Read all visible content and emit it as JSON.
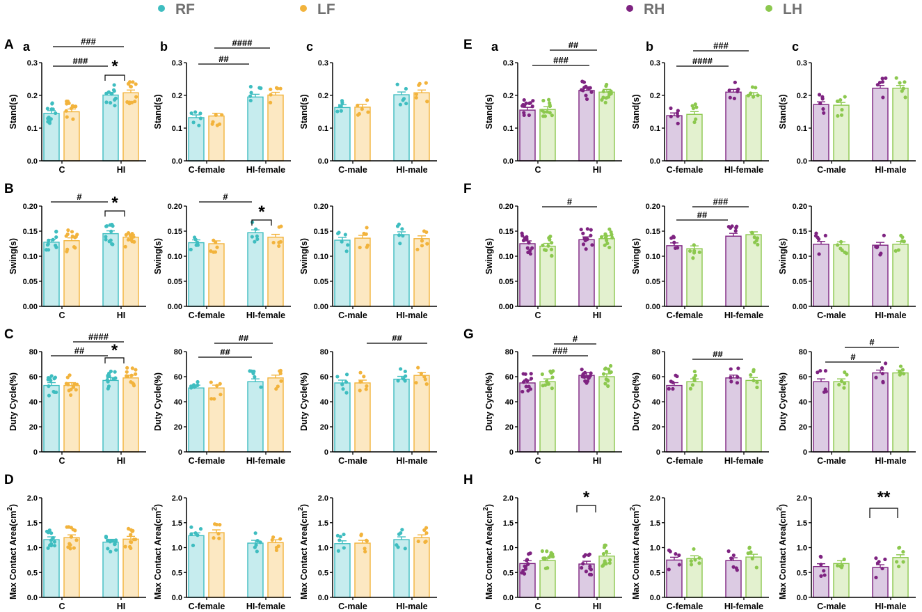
{
  "legend": [
    {
      "name": "RF",
      "color": "#3ebdc0",
      "fill": "#c6ecee"
    },
    {
      "name": "LF",
      "color": "#f2b33c",
      "fill": "#fce8c2"
    },
    {
      "name": "RH",
      "color": "#7e2381",
      "fill": "#dccbe3"
    },
    {
      "name": "LH",
      "color": "#8cc84e",
      "fill": "#e3f1cf"
    }
  ],
  "letters": [
    "A",
    "B",
    "C",
    "D",
    "E",
    "F",
    "G",
    "H"
  ],
  "sublabels": [
    "a",
    "b",
    "c"
  ],
  "chart_data": [
    {
      "type": "bar",
      "title": "A a",
      "ylabel": "Stand(s)",
      "ylim": [
        0,
        0.3
      ],
      "ticks": [
        "0.0",
        "0.1",
        "0.2",
        "0.3"
      ],
      "categories": [
        "C",
        "HI"
      ],
      "series": [
        {
          "name": "RF",
          "values": [
            0.145,
            0.201
          ]
        },
        {
          "name": "LF",
          "values": [
            0.15,
            0.208
          ]
        }
      ],
      "annotations": [
        {
          "text": "###",
          "from": "C",
          "to": "HI"
        },
        {
          "text": "###",
          "from": "C",
          "to": "HI"
        },
        {
          "text": "*",
          "from": "HI",
          "to": "HI"
        }
      ]
    },
    {
      "type": "bar",
      "title": "A b",
      "ylabel": "Stand(s)",
      "ylim": [
        0,
        0.3
      ],
      "ticks": [
        "0.0",
        "0.1",
        "0.2",
        "0.3"
      ],
      "categories": [
        "C-female",
        "HI-female"
      ],
      "series": [
        {
          "name": "RF",
          "values": [
            0.132,
            0.195
          ]
        },
        {
          "name": "LF",
          "values": [
            0.137,
            0.201
          ]
        }
      ],
      "annotations": [
        {
          "text": "##",
          "from": "C-female",
          "to": "HI-female"
        },
        {
          "text": "####",
          "from": "C-female",
          "to": "HI-female"
        }
      ]
    },
    {
      "type": "bar",
      "title": "A c",
      "ylabel": "Stand(s)",
      "ylim": [
        0,
        0.3
      ],
      "ticks": [
        "0.0",
        "0.1",
        "0.2",
        "0.3"
      ],
      "categories": [
        "C-male",
        "HI-male"
      ],
      "series": [
        {
          "name": "RF",
          "values": [
            0.163,
            0.202
          ]
        },
        {
          "name": "LF",
          "values": [
            0.164,
            0.208
          ]
        }
      ],
      "annotations": []
    },
    {
      "type": "bar",
      "title": "B",
      "ylabel": "Swing(s)",
      "ylim": [
        0,
        0.2
      ],
      "ticks": [
        "0.00",
        "0.05",
        "0.10",
        "0.15",
        "0.20"
      ],
      "categories": [
        "C",
        "HI"
      ],
      "series": [
        {
          "name": "RF",
          "values": [
            0.128,
            0.145
          ]
        },
        {
          "name": "LF",
          "values": [
            0.131,
            0.138
          ]
        }
      ],
      "annotations": [
        {
          "text": "#",
          "from": "C",
          "to": "HI"
        },
        {
          "text": "*",
          "from": "HI",
          "to": "HI"
        }
      ]
    },
    {
      "type": "bar",
      "title": "B b",
      "ylabel": "Swing(s)",
      "ylim": [
        0,
        0.2
      ],
      "ticks": [
        "0.00",
        "0.05",
        "0.10",
        "0.15",
        "0.20"
      ],
      "categories": [
        "C-female",
        "HI-female"
      ],
      "series": [
        {
          "name": "RF",
          "values": [
            0.127,
            0.147
          ]
        },
        {
          "name": "LF",
          "values": [
            0.125,
            0.138
          ]
        }
      ],
      "annotations": [
        {
          "text": "#",
          "from": "C-female",
          "to": "HI-female"
        },
        {
          "text": "*",
          "from": "HI-female",
          "to": "HI-female"
        }
      ]
    },
    {
      "type": "bar",
      "title": "B c",
      "ylabel": "Swing(s)",
      "ylim": [
        0,
        0.2
      ],
      "ticks": [
        "0.00",
        "0.05",
        "0.10",
        "0.15",
        "0.20"
      ],
      "categories": [
        "C-male",
        "HI-male"
      ],
      "series": [
        {
          "name": "RF",
          "values": [
            0.132,
            0.143
          ]
        },
        {
          "name": "LF",
          "values": [
            0.136,
            0.135
          ]
        }
      ],
      "annotations": []
    },
    {
      "type": "bar",
      "title": "C",
      "ylabel": "Duty Cycle(%)",
      "ylim": [
        0,
        80
      ],
      "ticks": [
        "0",
        "20",
        "40",
        "60",
        "80"
      ],
      "categories": [
        "C",
        "HI"
      ],
      "series": [
        {
          "name": "RF",
          "values": [
            53,
            57
          ]
        },
        {
          "name": "LF",
          "values": [
            53,
            59
          ]
        }
      ],
      "annotations": [
        {
          "text": "##",
          "from": "C",
          "to": "HI"
        },
        {
          "text": "####",
          "from": "C",
          "to": "HI"
        },
        {
          "text": "*",
          "from": "HI",
          "to": "HI"
        }
      ]
    },
    {
      "type": "bar",
      "title": "C b",
      "ylabel": "Duty Cycle(%)",
      "ylim": [
        0,
        80
      ],
      "ticks": [
        "0",
        "20",
        "40",
        "60",
        "80"
      ],
      "categories": [
        "C-female",
        "HI-female"
      ],
      "series": [
        {
          "name": "RF",
          "values": [
            51,
            56
          ]
        },
        {
          "name": "LF",
          "values": [
            51,
            59
          ]
        }
      ],
      "annotations": [
        {
          "text": "##",
          "from": "C-female",
          "to": "HI-female"
        },
        {
          "text": "##",
          "from": "C-female",
          "to": "HI-female"
        }
      ]
    },
    {
      "type": "bar",
      "title": "C c",
      "ylabel": "Duty Cycle(%)",
      "ylim": [
        0,
        80
      ],
      "ticks": [
        "0",
        "20",
        "40",
        "60",
        "80"
      ],
      "categories": [
        "C-male",
        "HI-male"
      ],
      "series": [
        {
          "name": "RF",
          "values": [
            55,
            58
          ]
        },
        {
          "name": "LF",
          "values": [
            55,
            61
          ]
        }
      ],
      "annotations": [
        {
          "text": "##",
          "from": "C-male",
          "to": "HI-male"
        }
      ]
    },
    {
      "type": "bar",
      "title": "D",
      "ylabel": "Max Contact Area(cm2)",
      "ylim": [
        0,
        2
      ],
      "ticks": [
        "0.0",
        "0.5",
        "1.0",
        "1.5",
        "2.0"
      ],
      "categories": [
        "C",
        "HI"
      ],
      "series": [
        {
          "name": "RF",
          "values": [
            1.16,
            1.11
          ]
        },
        {
          "name": "LF",
          "values": [
            1.2,
            1.17
          ]
        }
      ],
      "annotations": []
    },
    {
      "type": "bar",
      "title": "D b",
      "ylabel": "Max Contact Area(cm2)",
      "ylim": [
        0,
        2
      ],
      "ticks": [
        "0.0",
        "0.5",
        "1.0",
        "1.5",
        "2.0"
      ],
      "categories": [
        "C-female",
        "HI-female"
      ],
      "series": [
        {
          "name": "RF",
          "values": [
            1.24,
            1.09
          ]
        },
        {
          "name": "LF",
          "values": [
            1.3,
            1.1
          ]
        }
      ],
      "annotations": []
    },
    {
      "type": "bar",
      "title": "D c",
      "ylabel": "Max Contact Area(cm2)",
      "ylim": [
        0,
        2
      ],
      "ticks": [
        "0.0",
        "0.5",
        "1.0",
        "1.5",
        "2.0"
      ],
      "categories": [
        "C-male",
        "HI-male"
      ],
      "series": [
        {
          "name": "RF",
          "values": [
            1.08,
            1.16
          ]
        },
        {
          "name": "LF",
          "values": [
            1.09,
            1.2
          ]
        }
      ],
      "annotations": []
    },
    {
      "type": "bar",
      "title": "E a",
      "ylabel": "Stand(s)",
      "ylim": [
        0,
        0.3
      ],
      "ticks": [
        "0.0",
        "0.1",
        "0.2",
        "0.3"
      ],
      "categories": [
        "C",
        "HI"
      ],
      "series": [
        {
          "name": "RH",
          "values": [
            0.155,
            0.215
          ]
        },
        {
          "name": "LH",
          "values": [
            0.157,
            0.21
          ]
        }
      ],
      "annotations": [
        {
          "text": "###",
          "from": "C",
          "to": "HI"
        },
        {
          "text": "##",
          "from": "C",
          "to": "HI"
        }
      ]
    },
    {
      "type": "bar",
      "title": "E b",
      "ylabel": "Stand(s)",
      "ylim": [
        0,
        0.3
      ],
      "ticks": [
        "0.0",
        "0.1",
        "0.2",
        "0.3"
      ],
      "categories": [
        "C-female",
        "HI-female"
      ],
      "series": [
        {
          "name": "RH",
          "values": [
            0.138,
            0.21
          ]
        },
        {
          "name": "LH",
          "values": [
            0.142,
            0.2
          ]
        }
      ],
      "annotations": [
        {
          "text": "####",
          "from": "C-female",
          "to": "HI-female"
        },
        {
          "text": "###",
          "from": "C-female",
          "to": "HI-female"
        }
      ]
    },
    {
      "type": "bar",
      "title": "E c",
      "ylabel": "Stand(s)",
      "ylim": [
        0,
        0.3
      ],
      "ticks": [
        "0.0",
        "0.1",
        "0.2",
        "0.3"
      ],
      "categories": [
        "C-male",
        "HI-male"
      ],
      "series": [
        {
          "name": "RH",
          "values": [
            0.172,
            0.222
          ]
        },
        {
          "name": "LH",
          "values": [
            0.17,
            0.222
          ]
        }
      ],
      "annotations": []
    },
    {
      "type": "bar",
      "title": "F",
      "ylabel": "Swing(s)",
      "ylim": [
        0,
        0.2
      ],
      "ticks": [
        "0.00",
        "0.05",
        "0.10",
        "0.15",
        "0.20"
      ],
      "categories": [
        "C",
        "HI"
      ],
      "series": [
        {
          "name": "RH",
          "values": [
            0.125,
            0.133
          ]
        },
        {
          "name": "LH",
          "values": [
            0.12,
            0.135
          ]
        }
      ],
      "annotations": [
        {
          "text": "#",
          "from": "C",
          "to": "HI"
        }
      ]
    },
    {
      "type": "bar",
      "title": "F b",
      "ylabel": "Swing(s)",
      "ylim": [
        0,
        0.2
      ],
      "ticks": [
        "0.00",
        "0.05",
        "0.10",
        "0.15",
        "0.20"
      ],
      "categories": [
        "C-female",
        "HI-female"
      ],
      "series": [
        {
          "name": "RH",
          "values": [
            0.121,
            0.14
          ]
        },
        {
          "name": "LH",
          "values": [
            0.115,
            0.143
          ]
        }
      ],
      "annotations": [
        {
          "text": "##",
          "from": "C-female",
          "to": "HI-female"
        },
        {
          "text": "###",
          "from": "C-female",
          "to": "HI-female"
        }
      ]
    },
    {
      "type": "bar",
      "title": "F c",
      "ylabel": "Swing(s)",
      "ylim": [
        0,
        0.2
      ],
      "ticks": [
        "0.00",
        "0.05",
        "0.10",
        "0.15",
        "0.20"
      ],
      "categories": [
        "C-male",
        "HI-male"
      ],
      "series": [
        {
          "name": "RH",
          "values": [
            0.124,
            0.122
          ]
        },
        {
          "name": "LH",
          "values": [
            0.123,
            0.124
          ]
        }
      ],
      "annotations": []
    },
    {
      "type": "bar",
      "title": "G",
      "ylabel": "Duty Cycle(%)",
      "ylim": [
        0,
        80
      ],
      "ticks": [
        "0",
        "20",
        "40",
        "60",
        "80"
      ],
      "categories": [
        "C",
        "HI"
      ],
      "series": [
        {
          "name": "RH",
          "values": [
            55,
            61
          ]
        },
        {
          "name": "LH",
          "values": [
            56,
            60
          ]
        }
      ],
      "annotations": [
        {
          "text": "###",
          "from": "C",
          "to": "HI"
        },
        {
          "text": "#",
          "from": "C",
          "to": "HI"
        }
      ]
    },
    {
      "type": "bar",
      "title": "G b",
      "ylabel": "Duty Cycle(%)",
      "ylim": [
        0,
        80
      ],
      "ticks": [
        "0",
        "20",
        "40",
        "60",
        "80"
      ],
      "categories": [
        "C-female",
        "HI-female"
      ],
      "series": [
        {
          "name": "RH",
          "values": [
            53,
            59
          ]
        },
        {
          "name": "LH",
          "values": [
            56,
            57
          ]
        }
      ],
      "annotations": [
        {
          "text": "##",
          "from": "C-female",
          "to": "HI-female"
        }
      ]
    },
    {
      "type": "bar",
      "title": "G c",
      "ylabel": "Duty Cycle(%)",
      "ylim": [
        0,
        80
      ],
      "ticks": [
        "0",
        "20",
        "40",
        "60",
        "80"
      ],
      "categories": [
        "C-male",
        "HI-male"
      ],
      "series": [
        {
          "name": "RH",
          "values": [
            56,
            63
          ]
        },
        {
          "name": "LH",
          "values": [
            56,
            63
          ]
        }
      ],
      "annotations": [
        {
          "text": "#",
          "from": "C-male",
          "to": "HI-male"
        },
        {
          "text": "#",
          "from": "C-male",
          "to": "HI-male"
        }
      ]
    },
    {
      "type": "bar",
      "title": "H",
      "ylabel": "Max Contact Area(cm2)",
      "ylim": [
        0,
        2
      ],
      "ticks": [
        "0.0",
        "0.5",
        "1.0",
        "1.5",
        "2.0"
      ],
      "categories": [
        "C",
        "HI"
      ],
      "series": [
        {
          "name": "RH",
          "values": [
            0.68,
            0.67
          ]
        },
        {
          "name": "LH",
          "values": [
            0.74,
            0.83
          ]
        }
      ],
      "annotations": [
        {
          "text": "*",
          "from": "HI",
          "to": "HI"
        }
      ]
    },
    {
      "type": "bar",
      "title": "H b",
      "ylabel": "Max Contact Area(cm2)",
      "ylim": [
        0,
        2
      ],
      "ticks": [
        "0.0",
        "0.5",
        "1.0",
        "1.5",
        "2.0"
      ],
      "categories": [
        "C-female",
        "HI-female"
      ],
      "series": [
        {
          "name": "RH",
          "values": [
            0.75,
            0.74
          ]
        },
        {
          "name": "LH",
          "values": [
            0.78,
            0.81
          ]
        }
      ],
      "annotations": []
    },
    {
      "type": "bar",
      "title": "H c",
      "ylabel": "Max Contact Area(cm2)",
      "ylim": [
        0,
        2
      ],
      "ticks": [
        "0.0",
        "0.5",
        "1.0",
        "1.5",
        "2.0"
      ],
      "categories": [
        "C-male",
        "HI-male"
      ],
      "series": [
        {
          "name": "RH",
          "values": [
            0.62,
            0.6
          ]
        },
        {
          "name": "LH",
          "values": [
            0.68,
            0.8
          ]
        }
      ],
      "annotations": [
        {
          "text": "**",
          "from": "HI-male",
          "to": "HI-male"
        }
      ]
    }
  ]
}
